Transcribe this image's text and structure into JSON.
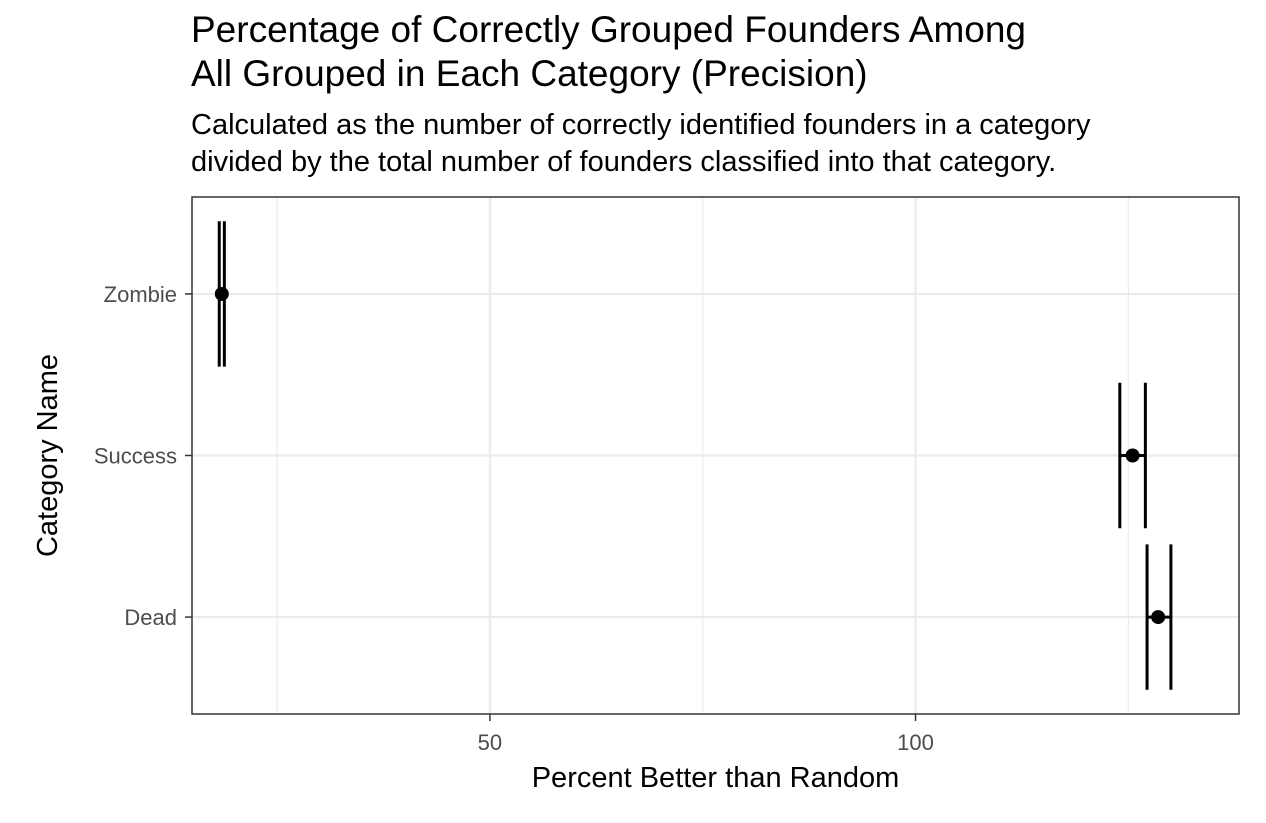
{
  "title_lines": [
    "Percentage of Correctly Grouped Founders Among",
    "All Grouped in Each Category (Precision)"
  ],
  "subtitle_lines": [
    "Calculated as the number of correctly identified founders in a category",
    "divided by the total number of founders classified into that category."
  ],
  "chart_data": {
    "type": "scatter",
    "subtype": "point-with-error-bars",
    "orientation": "horizontal",
    "xlabel": "Percent Better than Random",
    "ylabel": "Category Name",
    "xlim": [
      15,
      138
    ],
    "x_ticks": [
      50,
      100
    ],
    "x_tick_labels": [
      "50",
      "100"
    ],
    "categories": [
      "Zombie",
      "Success",
      "Dead"
    ],
    "points": [
      {
        "category": "Zombie",
        "x": 18.5,
        "lower": 18.2,
        "upper": 18.8
      },
      {
        "category": "Success",
        "x": 125.5,
        "lower": 124.0,
        "upper": 127.0
      },
      {
        "category": "Dead",
        "x": 128.5,
        "lower": 127.2,
        "upper": 130.0
      }
    ],
    "grid": true,
    "legend": "none",
    "colors": {
      "points": "#000000",
      "grid": "#ebebeb",
      "panel_border": "#333333",
      "tick_label": "#4d4d4d"
    }
  }
}
